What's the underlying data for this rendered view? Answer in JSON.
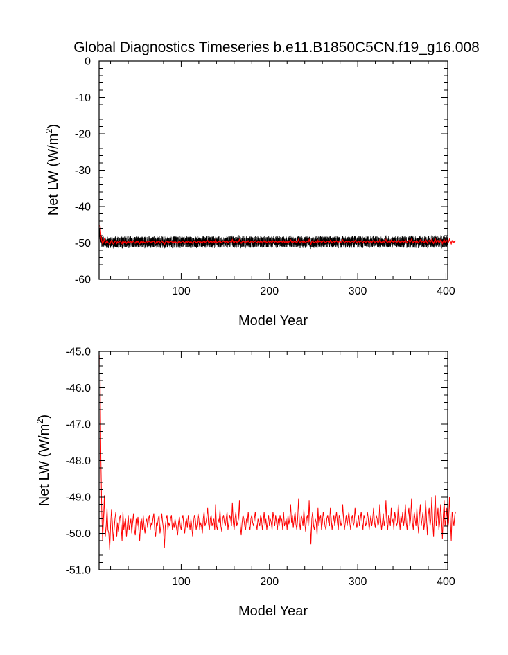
{
  "title": "Global Diagnostics Timeseries b.e11.B1850C5CN.f19_g16.008",
  "colors": {
    "raw_series": "#000000",
    "mean_series": "#ff0000",
    "axes": "#000000"
  },
  "chart_data": [
    {
      "type": "line",
      "title": "Global Diagnostics Timeseries b.e11.B1850C5CN.f19_g16.008",
      "xlabel": "Model Year",
      "ylabel_base": "Net LW (W/m",
      "ylabel_sup": "2",
      "ylabel_end": ")",
      "xlim": [
        7,
        402
      ],
      "ylim": [
        -60,
        0
      ],
      "xticks": [
        100,
        200,
        300,
        400
      ],
      "yticks": [
        0,
        -10,
        -20,
        -30,
        -40,
        -50,
        -60
      ],
      "ytick_labels": [
        "0",
        "-10",
        "-20",
        "-30",
        "-40",
        "-50",
        "-60"
      ],
      "grid": false,
      "series": [
        {
          "color": "#000000",
          "type": "monthly",
          "mean": -49.8,
          "amplitude": 1.6,
          "x_start": 7,
          "x_end": 402
        },
        {
          "color": "#ff0000",
          "type": "annual",
          "ref": "annual_values"
        }
      ]
    },
    {
      "type": "line",
      "xlabel": "Model Year",
      "ylabel_base": "Net LW (W/m",
      "ylabel_sup": "2",
      "ylabel_end": ")",
      "xlim": [
        7,
        402
      ],
      "ylim": [
        -51,
        -45
      ],
      "xticks": [
        100,
        200,
        300,
        400
      ],
      "yticks": [
        -45,
        -46,
        -47,
        -48,
        -49,
        -50,
        -51
      ],
      "ytick_labels": [
        "-45.0",
        "-46.0",
        "-47.0",
        "-48.0",
        "-49.0",
        "-50.0",
        "-51.0"
      ],
      "grid": false,
      "series": [
        {
          "color": "#ff0000",
          "type": "annual",
          "ref": "annual_values"
        }
      ]
    }
  ],
  "annual_x_start": 8,
  "annual_values": [
    -45.1,
    -47.9,
    -49.4,
    -50.2,
    -49.6,
    -48.95,
    -50.1,
    -49.8,
    -49.3,
    -49.9,
    -50.0,
    -50.45,
    -49.8,
    -49.35,
    -49.7,
    -50.2,
    -49.9,
    -49.6,
    -49.4,
    -50.1,
    -49.7,
    -49.95,
    -49.6,
    -49.5,
    -49.8,
    -50.2,
    -49.4,
    -49.9,
    -49.7,
    -49.6,
    -50.1,
    -49.8,
    -49.5,
    -49.9,
    -49.75,
    -49.6,
    -50.0,
    -49.7,
    -49.45,
    -49.9,
    -50.05,
    -49.6,
    -49.8,
    -49.55,
    -49.9,
    -50.2,
    -49.7,
    -49.6,
    -49.9,
    -49.5,
    -49.8,
    -50.0,
    -49.7,
    -49.6,
    -49.85,
    -49.6,
    -49.5,
    -49.9,
    -49.7,
    -49.8,
    -49.6,
    -49.45,
    -49.9,
    -50.1,
    -49.7,
    -49.8,
    -49.6,
    -49.5,
    -50.0,
    -49.8,
    -49.45,
    -49.7,
    -49.9,
    -50.4,
    -49.8,
    -49.6,
    -49.5,
    -49.9,
    -49.7,
    -49.8,
    -49.6,
    -49.5,
    -49.9,
    -49.7,
    -49.85,
    -49.6,
    -49.75,
    -49.9,
    -50.05,
    -49.7,
    -49.55,
    -49.8,
    -49.9,
    -49.6,
    -49.5,
    -49.8,
    -50.0,
    -49.7,
    -49.6,
    -49.85,
    -49.5,
    -49.7,
    -49.9,
    -49.6,
    -49.8,
    -50.1,
    -49.7,
    -49.5,
    -49.6,
    -49.9,
    -49.75,
    -49.45,
    -49.6,
    -49.9,
    -49.7,
    -49.8,
    -50.0,
    -49.6,
    -49.4,
    -49.8,
    -49.7,
    -49.55,
    -49.3,
    -49.75,
    -49.9,
    -49.6,
    -49.5,
    -49.8,
    -49.7,
    -49.6,
    -49.9,
    -49.2,
    -49.8,
    -49.9,
    -49.6,
    -49.7,
    -49.35,
    -49.8,
    -49.95,
    -49.6,
    -49.5,
    -49.7,
    -49.8,
    -49.6,
    -49.4,
    -49.9,
    -49.7,
    -49.5,
    -49.6,
    -49.8,
    -49.15,
    -49.7,
    -49.9,
    -49.6,
    -49.4,
    -49.8,
    -49.7,
    -49.6,
    -49.1,
    -49.8,
    -50.05,
    -49.7,
    -49.5,
    -49.6,
    -49.8,
    -49.9,
    -49.6,
    -49.7,
    -49.4,
    -49.8,
    -49.9,
    -49.6,
    -49.5,
    -49.7,
    -49.8,
    -49.6,
    -49.4,
    -49.75,
    -49.9,
    -49.6,
    -49.7,
    -49.8,
    -49.5,
    -49.6,
    -49.9,
    -49.7,
    -49.4,
    -49.8,
    -49.6,
    -49.9,
    -49.7,
    -49.5,
    -49.8,
    -49.6,
    -49.7,
    -49.9,
    -49.4,
    -49.6,
    -49.8,
    -49.5,
    -49.7,
    -49.9,
    -49.6,
    -49.8,
    -49.5,
    -49.7,
    -49.6,
    -49.9,
    -49.4,
    -49.8,
    -49.7,
    -49.6,
    -49.9,
    -49.5,
    -49.75,
    -49.6,
    -49.2,
    -49.7,
    -49.5,
    -49.85,
    -49.6,
    -49.4,
    -49.75,
    -49.9,
    -49.6,
    -49.05,
    -49.7,
    -49.9,
    -49.5,
    -49.6,
    -49.8,
    -49.35,
    -49.7,
    -49.95,
    -49.6,
    -49.5,
    -49.8,
    -49.1,
    -49.7,
    -50.3,
    -49.6,
    -49.4,
    -49.8,
    -49.9,
    -49.6,
    -49.7,
    -50.05,
    -49.3,
    -49.8,
    -49.6,
    -49.5,
    -49.9,
    -49.7,
    -49.4,
    -49.6,
    -49.8,
    -49.9,
    -49.6,
    -49.5,
    -49.7,
    -49.8,
    -49.3,
    -49.6,
    -49.9,
    -49.7,
    -49.5,
    -49.8,
    -49.6,
    -49.4,
    -49.7,
    -49.9,
    -49.5,
    -49.6,
    -49.8,
    -49.7,
    -49.2,
    -49.6,
    -49.9,
    -49.7,
    -49.5,
    -49.8,
    -49.6,
    -49.4,
    -49.7,
    -49.9,
    -49.6,
    -49.5,
    -49.8,
    -49.7,
    -49.3,
    -49.6,
    -49.85,
    -49.7,
    -49.5,
    -49.8,
    -49.6,
    -49.4,
    -49.7,
    -49.9,
    -49.5,
    -49.6,
    -49.8,
    -49.7,
    -49.4,
    -49.6,
    -49.9,
    -49.7,
    -49.5,
    -49.8,
    -49.6,
    -49.3,
    -49.7,
    -49.85,
    -49.5,
    -49.6,
    -49.8,
    -49.7,
    -49.2,
    -49.6,
    -49.9,
    -49.7,
    -49.45,
    -49.8,
    -49.6,
    -49.1,
    -49.7,
    -49.9,
    -49.5,
    -49.6,
    -49.8,
    -49.3,
    -49.7,
    -49.6,
    -49.9,
    -49.4,
    -49.6,
    -49.8,
    -49.7,
    -49.2,
    -49.6,
    -49.9,
    -49.5,
    -49.7,
    -49.4,
    -49.8,
    -49.6,
    -49.2,
    -49.7,
    -49.9,
    -49.5,
    -49.3,
    -49.8,
    -49.6,
    -49.05,
    -49.7,
    -49.9,
    -49.4,
    -49.6,
    -49.8,
    -49.3,
    -49.7,
    -50.0,
    -49.5,
    -49.2,
    -49.8,
    -49.6,
    -49.4,
    -49.9,
    -49.7,
    -49.1,
    -49.6,
    -50.05,
    -49.5,
    -49.3,
    -49.8,
    -49.6,
    -49.0,
    -49.7,
    -50.1,
    -49.4,
    -48.95,
    -49.8,
    -49.6,
    -49.3,
    -49.9,
    -49.7,
    -49.2,
    -49.6,
    -50.15,
    -49.5,
    -49.1,
    -49.8,
    -49.6,
    -49.3,
    -49.9,
    -49.7,
    -49.0,
    -49.6,
    -50.2,
    -49.4,
    -49.6,
    -49.8,
    -49.5,
    -49.4
  ]
}
